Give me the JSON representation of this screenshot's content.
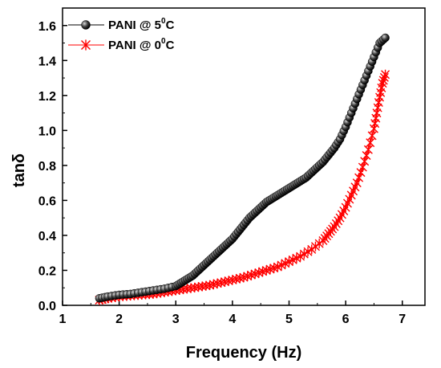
{
  "chart_data": {
    "type": "scatter",
    "xlabel": "Frequency (Hz)",
    "ylabel": "tanδ",
    "xlim": [
      1,
      7.4
    ],
    "ylim": [
      0,
      1.7
    ],
    "xticks": [
      "1",
      "2",
      "3",
      "4",
      "5",
      "6",
      "7"
    ],
    "yticks": [
      "0.0",
      "0.2",
      "0.4",
      "0.6",
      "0.8",
      "1.0",
      "1.2",
      "1.4",
      "1.6"
    ],
    "legend_position": "top-left",
    "grid": false,
    "series": [
      {
        "name_main": "PANI @ 5",
        "name_sup": "0",
        "name_tail": "C",
        "color": "#000000",
        "marker": "sphere",
        "x": [
          1.65,
          1.8,
          2.0,
          2.2,
          2.4,
          2.6,
          2.8,
          3.0,
          3.1,
          3.2,
          3.3,
          3.4,
          3.5,
          3.6,
          3.7,
          3.8,
          3.9,
          4.0,
          4.1,
          4.2,
          4.3,
          4.4,
          4.5,
          4.6,
          4.7,
          4.8,
          4.9,
          5.0,
          5.1,
          5.2,
          5.3,
          5.4,
          5.5,
          5.6,
          5.7,
          5.8,
          5.9,
          6.0,
          6.1,
          6.2,
          6.3,
          6.4,
          6.5,
          6.6,
          6.7
        ],
        "y": [
          0.04,
          0.05,
          0.06,
          0.065,
          0.075,
          0.085,
          0.095,
          0.11,
          0.13,
          0.15,
          0.17,
          0.2,
          0.23,
          0.26,
          0.29,
          0.32,
          0.35,
          0.38,
          0.42,
          0.46,
          0.5,
          0.53,
          0.56,
          0.59,
          0.61,
          0.63,
          0.65,
          0.67,
          0.69,
          0.71,
          0.73,
          0.76,
          0.79,
          0.82,
          0.86,
          0.9,
          0.95,
          1.02,
          1.1,
          1.18,
          1.26,
          1.34,
          1.42,
          1.5,
          1.53
        ]
      },
      {
        "name_main": "PANI @ 0",
        "name_sup": "0",
        "name_tail": "C",
        "color": "#ff0000",
        "marker": "star",
        "x": [
          1.65,
          1.8,
          2.0,
          2.2,
          2.4,
          2.6,
          2.8,
          3.0,
          3.2,
          3.4,
          3.6,
          3.8,
          4.0,
          4.2,
          4.4,
          4.6,
          4.8,
          5.0,
          5.2,
          5.4,
          5.6,
          5.7,
          5.8,
          5.9,
          6.0,
          6.1,
          6.2,
          6.3,
          6.4,
          6.5,
          6.55,
          6.6,
          6.65,
          6.7
        ],
        "y": [
          0.03,
          0.04,
          0.05,
          0.055,
          0.06,
          0.065,
          0.075,
          0.085,
          0.095,
          0.105,
          0.115,
          0.13,
          0.145,
          0.16,
          0.18,
          0.2,
          0.22,
          0.25,
          0.28,
          0.32,
          0.37,
          0.41,
          0.45,
          0.5,
          0.56,
          0.63,
          0.7,
          0.79,
          0.89,
          1.01,
          1.1,
          1.19,
          1.27,
          1.32
        ]
      }
    ]
  }
}
